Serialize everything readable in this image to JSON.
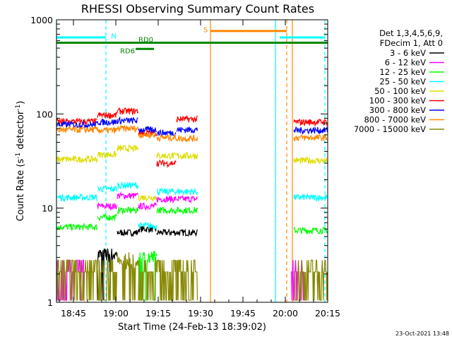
{
  "chart_data": {
    "type": "line",
    "title": "RHESSI Observing Summary Count Rates",
    "xlabel": "Start Time (24-Feb-13 18:39:02)",
    "ylabel_main": "Count Rate (s",
    "ylabel_sup1": "-1",
    "ylabel_mid": " detector",
    "ylabel_sup2": "-1",
    "ylabel_end": ")",
    "ylog": true,
    "ylim": [
      1,
      1000
    ],
    "xlim_min": [
      0,
      96
    ],
    "x_ticks": [
      {
        "min": 6,
        "label": "18:45"
      },
      {
        "min": 21,
        "label": "19:00"
      },
      {
        "min": 36,
        "label": "19:15"
      },
      {
        "min": 51,
        "label": "19:30"
      },
      {
        "min": 66,
        "label": "19:45"
      },
      {
        "min": 81,
        "label": "20:00"
      },
      {
        "min": 96,
        "label": "20:15"
      }
    ],
    "y_ticks": [
      {
        "val": 1,
        "label": "1"
      },
      {
        "val": 10,
        "label": "10"
      },
      {
        "val": 100,
        "label": "100"
      },
      {
        "val": 1000,
        "label": "1000"
      }
    ],
    "legend_header": [
      "Det 1,3,4,5,6,9,",
      "FDecim 1, Att 0"
    ],
    "series": [
      {
        "name": "3 - 6 keV",
        "color": "#000000",
        "segments": [
          [
            0,
            14.5,
            0
          ],
          [
            14.5,
            21.5,
            3.2
          ],
          [
            21.5,
            29,
            5.5
          ],
          [
            29,
            35.5,
            6.0
          ],
          [
            35.5,
            42.5,
            5.5
          ],
          [
            42.5,
            50,
            5.5
          ]
        ]
      },
      {
        "name": "6 - 12 keV",
        "color": "#ff00ff",
        "segments": [
          [
            0,
            10,
            2.3
          ],
          [
            14.5,
            21.5,
            10.5
          ],
          [
            21.5,
            29,
            13.5
          ],
          [
            29,
            35.5,
            10.5
          ],
          [
            35.5,
            42.5,
            12.5
          ],
          [
            42.5,
            50,
            12.5
          ],
          [
            83,
            88,
            2.3
          ]
        ]
      },
      {
        "name": "12 - 25 keV",
        "color": "#00ff00",
        "segments": [
          [
            0,
            14.5,
            6.3
          ],
          [
            14.5,
            21.5,
            8.0
          ],
          [
            21.5,
            29,
            9.5
          ],
          [
            29,
            35.5,
            3.0
          ],
          [
            35.5,
            42.5,
            9.5
          ],
          [
            42.5,
            50,
            9.5
          ],
          [
            84,
            96,
            5.8
          ]
        ]
      },
      {
        "name": "25 - 50 keV",
        "color": "#00ffff",
        "segments": [
          [
            0,
            14.5,
            13
          ],
          [
            14.5,
            21.5,
            16
          ],
          [
            21.5,
            29,
            17.5
          ],
          [
            29,
            35.5,
            6.5
          ],
          [
            35.5,
            42.5,
            15
          ],
          [
            42.5,
            50,
            15
          ],
          [
            84,
            96,
            13
          ]
        ]
      },
      {
        "name": "50 - 100 keV",
        "color": "#dddd00",
        "segments": [
          [
            0,
            14.5,
            33
          ],
          [
            14.5,
            21.5,
            37
          ],
          [
            21.5,
            29,
            43
          ],
          [
            29,
            35.5,
            13
          ],
          [
            35.5,
            42.5,
            36
          ],
          [
            42.5,
            50,
            36
          ],
          [
            84,
            96,
            32
          ]
        ]
      },
      {
        "name": "100 - 300 keV",
        "color": "#ff0000",
        "segments": [
          [
            0,
            14.5,
            83
          ],
          [
            14.5,
            21.5,
            97
          ],
          [
            21.5,
            29,
            107
          ],
          [
            29,
            35.5,
            63
          ],
          [
            35.5,
            42.5,
            30
          ],
          [
            42.5,
            50,
            88
          ],
          [
            84,
            96,
            82
          ]
        ]
      },
      {
        "name": "300 - 800 keV",
        "color": "#0000ff",
        "segments": [
          [
            0,
            14.5,
            77
          ],
          [
            14.5,
            21.5,
            82
          ],
          [
            21.5,
            29,
            85
          ],
          [
            29,
            35.5,
            68
          ],
          [
            35.5,
            42.5,
            63
          ],
          [
            42.5,
            50,
            68
          ],
          [
            84,
            96,
            67
          ]
        ]
      },
      {
        "name": "800 - 7000 keV",
        "color": "#ff8800",
        "segments": [
          [
            0,
            14.5,
            68
          ],
          [
            14.5,
            21.5,
            67
          ],
          [
            21.5,
            29,
            70
          ],
          [
            29,
            35.5,
            60
          ],
          [
            35.5,
            42.5,
            56
          ],
          [
            42.5,
            50,
            55
          ],
          [
            84,
            96,
            56
          ]
        ]
      },
      {
        "name": "7000 - 15000 keV",
        "color": "#888800",
        "segments": [
          [
            0,
            14.5,
            1.4
          ],
          [
            14.5,
            21.5,
            2.3
          ],
          [
            21.5,
            29,
            2.8
          ],
          [
            29,
            35.5,
            2.0
          ],
          [
            35.5,
            42.5,
            1.7
          ],
          [
            42.5,
            50,
            1.8
          ],
          [
            84,
            96,
            1.5
          ]
        ]
      }
    ],
    "vertical_markers": [
      {
        "min": 0,
        "color": "#00ffff",
        "dashed": false
      },
      {
        "min": 17.5,
        "color": "#00ffff",
        "dashed": true
      },
      {
        "min": 54.5,
        "color": "#ff8800",
        "dashed": false
      },
      {
        "min": 77.5,
        "color": "#00ffff",
        "dashed": false
      },
      {
        "min": 81.5,
        "color": "#ff8800",
        "dashed": true
      },
      {
        "min": 83.5,
        "color": "#ff8800",
        "dashed": false
      },
      {
        "min": 95,
        "color": "#00ffff",
        "dashed": true
      }
    ],
    "state_bars": [
      {
        "label": "N",
        "color": "#00ffff",
        "val": 650,
        "segments": [
          [
            0,
            17.5
          ],
          [
            79,
            95
          ]
        ],
        "label_min": 19.3,
        "label_val": 680
      },
      {
        "label": "S",
        "color": "#ff8800",
        "val": 760,
        "segments": [
          [
            54.5,
            81.5
          ]
        ],
        "label_min": 52,
        "label_val": 790
      },
      {
        "label": "RD0",
        "color": "#008800",
        "val": 570,
        "segments": [
          [
            0,
            96
          ]
        ],
        "label_min": 29,
        "label_val": 620
      },
      {
        "label": "RD6",
        "color": "#008800",
        "val": 490,
        "segments": [
          [
            28,
            34.5
          ]
        ],
        "label_min": 22.5,
        "label_val": 470
      }
    ],
    "footer_date": "23-Oct-2021 13:48"
  }
}
